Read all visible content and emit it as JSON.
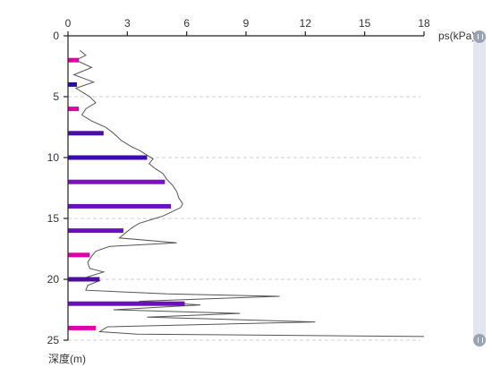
{
  "chart_data": {
    "type": "line",
    "orientation": "depth-profile",
    "x_axis": {
      "label": "ps(kPa)",
      "range": [
        0,
        18
      ],
      "ticks": [
        "0",
        "3",
        "6",
        "9",
        "12",
        "15",
        "18"
      ],
      "position": "top"
    },
    "y_axis": {
      "label": "深度(m)",
      "range": [
        0,
        25
      ],
      "inverted": true,
      "ticks": [
        "0",
        "5",
        "10",
        "15",
        "20",
        "25"
      ],
      "grid": "dashed"
    },
    "line_series": {
      "color": "#555555",
      "points": [
        [
          0.6,
          1.2
        ],
        [
          0.9,
          1.6
        ],
        [
          0.4,
          2.0
        ],
        [
          1.2,
          2.6
        ],
        [
          0.3,
          3.2
        ],
        [
          1.3,
          3.8
        ],
        [
          0.4,
          4.3
        ],
        [
          0.8,
          4.7
        ],
        [
          1.1,
          5.0
        ],
        [
          1.4,
          5.5
        ],
        [
          0.9,
          6.0
        ],
        [
          0.7,
          6.5
        ],
        [
          1.2,
          7.0
        ],
        [
          1.9,
          7.5
        ],
        [
          2.3,
          8.0
        ],
        [
          2.7,
          8.6
        ],
        [
          3.2,
          9.1
        ],
        [
          3.6,
          9.4
        ],
        [
          4.0,
          9.8
        ],
        [
          4.3,
          10.1
        ],
        [
          4.1,
          10.5
        ],
        [
          4.4,
          10.9
        ],
        [
          4.8,
          11.3
        ],
        [
          5.0,
          11.8
        ],
        [
          5.3,
          12.3
        ],
        [
          5.5,
          12.8
        ],
        [
          5.6,
          13.3
        ],
        [
          5.8,
          13.8
        ],
        [
          5.7,
          14.1
        ],
        [
          5.2,
          14.5
        ],
        [
          4.8,
          14.8
        ],
        [
          4.2,
          15.1
        ],
        [
          3.6,
          15.4
        ],
        [
          3.2,
          15.8
        ],
        [
          2.9,
          16.2
        ],
        [
          2.6,
          16.6
        ],
        [
          5.5,
          17.0
        ],
        [
          2.1,
          17.3
        ],
        [
          1.4,
          17.7
        ],
        [
          1.2,
          18.1
        ],
        [
          1.0,
          18.6
        ],
        [
          1.1,
          19.1
        ],
        [
          1.8,
          19.4
        ],
        [
          1.0,
          19.8
        ],
        [
          1.6,
          20.1
        ],
        [
          1.0,
          20.5
        ],
        [
          0.9,
          20.9
        ],
        [
          5.0,
          21.2
        ],
        [
          10.7,
          21.4
        ],
        [
          3.6,
          21.8
        ],
        [
          6.7,
          22.1
        ],
        [
          2.3,
          22.5
        ],
        [
          8.7,
          22.8
        ],
        [
          4.0,
          23.1
        ],
        [
          12.5,
          23.5
        ],
        [
          2.0,
          23.9
        ],
        [
          1.6,
          24.3
        ],
        [
          3.5,
          24.5
        ],
        [
          18.0,
          24.7
        ]
      ]
    },
    "bar_series": {
      "bars": [
        {
          "depth": 2,
          "value": 0.55,
          "color": "#e000a8"
        },
        {
          "depth": 4,
          "value": 0.45,
          "color": "#2a0aa8"
        },
        {
          "depth": 6,
          "value": 0.55,
          "color": "#e000a8"
        },
        {
          "depth": 8,
          "value": 1.8,
          "color": "#4b0fa0"
        },
        {
          "depth": 10,
          "value": 4.0,
          "color": "#3a0bb0"
        },
        {
          "depth": 12,
          "value": 4.9,
          "color": "#7a12c4"
        },
        {
          "depth": 14,
          "value": 5.2,
          "color": "#6a10c0"
        },
        {
          "depth": 16,
          "value": 2.8,
          "color": "#6a10c0"
        },
        {
          "depth": 18,
          "value": 1.1,
          "color": "#e000a8"
        },
        {
          "depth": 20,
          "value": 1.6,
          "color": "#4b0fa0"
        },
        {
          "depth": 22,
          "value": 5.9,
          "color": "#6a10c0"
        },
        {
          "depth": 24,
          "value": 1.4,
          "color": "#e000a8"
        }
      ]
    },
    "zoom_slider": {
      "start": 0,
      "end": 25
    }
  }
}
